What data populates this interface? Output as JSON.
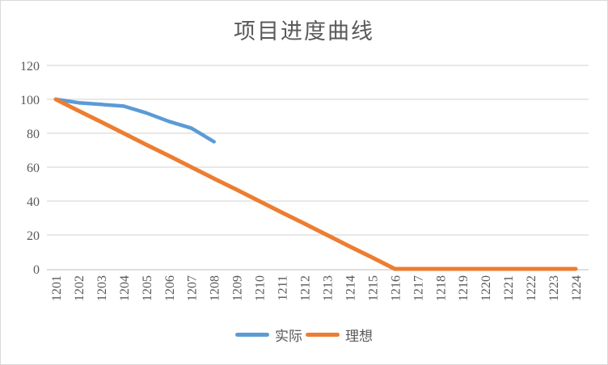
{
  "chart": {
    "title": "项目进度曲线"
  },
  "chart_data": {
    "type": "line",
    "title": "项目进度曲线",
    "xlabel": "",
    "ylabel": "",
    "categories": [
      "1201",
      "1202",
      "1203",
      "1204",
      "1205",
      "1206",
      "1207",
      "1208",
      "1209",
      "1210",
      "1211",
      "1212",
      "1213",
      "1214",
      "1215",
      "1216",
      "1217",
      "1218",
      "1219",
      "1220",
      "1221",
      "1222",
      "1223",
      "1224"
    ],
    "series": [
      {
        "name": "实际",
        "color": "#5B9BD5",
        "stroke_width": 4.5,
        "values": [
          100,
          98,
          97,
          96,
          92,
          87,
          83,
          75
        ]
      },
      {
        "name": "理想",
        "color": "#ED7D31",
        "stroke_width": 5,
        "values": [
          100,
          93.3,
          86.7,
          80,
          73.3,
          66.7,
          60,
          53.3,
          46.7,
          40,
          33.3,
          26.7,
          20,
          13.3,
          6.7,
          0,
          0,
          0,
          0,
          0,
          0,
          0,
          0,
          0
        ]
      }
    ],
    "y_ticks": [
      0,
      20,
      40,
      60,
      80,
      100,
      120
    ],
    "ylim": [
      0,
      120
    ],
    "grid": true,
    "legend_position": "bottom",
    "x_tick_rotation": -90,
    "colors": {
      "grid": "#d9d9d9",
      "axis": "#c9c9c9",
      "text": "#595959",
      "background": "#ffffff",
      "border": "#d9d9d9"
    }
  }
}
